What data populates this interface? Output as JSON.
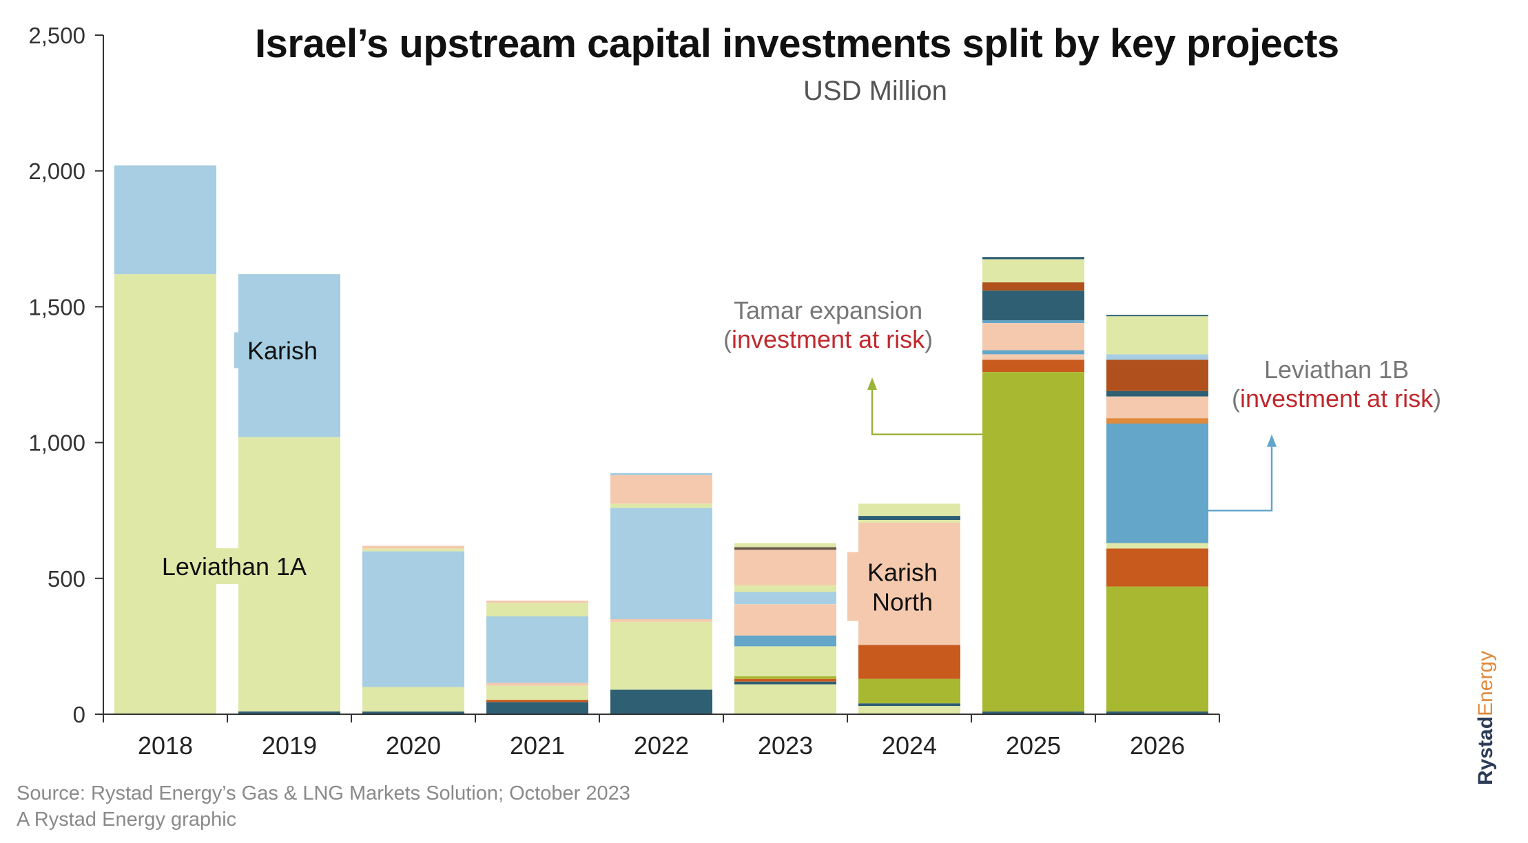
{
  "title": "Israel’s upstream capital investments split by key projects",
  "subtitle": "USD Million",
  "source_line1": "Source: Rystad Energy’s Gas & LNG Markets Solution; October 2023",
  "source_line2": "A Rystad Energy graphic",
  "brand": {
    "part1": "Rystad",
    "part2": "Energy"
  },
  "annotations": {
    "tamar_name": "Tamar expansion",
    "leviathan1b_name": "Leviathan 1B",
    "risk_open": "(",
    "risk_text": "investment at risk",
    "risk_close": ")"
  },
  "chart_data": {
    "type": "bar",
    "stacked": true,
    "title": "Israel’s upstream capital investments split by key projects",
    "subtitle": "USD Million",
    "categories": [
      "2018",
      "2019",
      "2020",
      "2021",
      "2022",
      "2023",
      "2024",
      "2025",
      "2026"
    ],
    "ylim": [
      0,
      2500
    ],
    "yticks": [
      0,
      500,
      1000,
      1500,
      2000,
      2500
    ],
    "ytick_labels": [
      "0",
      "500",
      "1,000",
      "1,500",
      "2,000",
      "2,500"
    ],
    "grid": false,
    "legend": "none",
    "bar_labels": [
      {
        "category": "2019",
        "text": "Karish"
      },
      {
        "category": "2018",
        "text": "Leviathan 1A"
      },
      {
        "category": "2024",
        "text": "Karish North"
      }
    ],
    "stacks": [
      {
        "category": "2018",
        "segments": [
          {
            "value": 1620,
            "color": "#e0e8a8"
          },
          {
            "value": 400,
            "color": "#a7cee2"
          }
        ]
      },
      {
        "category": "2019",
        "segments": [
          {
            "value": 10,
            "color": "#2e5f73"
          },
          {
            "value": 1010,
            "color": "#e0e8a8"
          },
          {
            "value": 600,
            "color": "#a7cee2"
          }
        ]
      },
      {
        "category": "2020",
        "segments": [
          {
            "value": 10,
            "color": "#2e5f73"
          },
          {
            "value": 90,
            "color": "#e0e8a8"
          },
          {
            "value": 500,
            "color": "#a7cee2"
          },
          {
            "value": 10,
            "color": "#e0e8a8"
          },
          {
            "value": 10,
            "color": "#f5c9ae"
          }
        ]
      },
      {
        "category": "2021",
        "segments": [
          {
            "value": 45,
            "color": "#2e5f73"
          },
          {
            "value": 8,
            "color": "#c85a1e"
          },
          {
            "value": 52,
            "color": "#e0e8a8"
          },
          {
            "value": 10,
            "color": "#f5c9ae"
          },
          {
            "value": 245,
            "color": "#a7cee2"
          },
          {
            "value": 50,
            "color": "#e0e8a8"
          },
          {
            "value": 8,
            "color": "#f5c9ae"
          }
        ]
      },
      {
        "category": "2022",
        "segments": [
          {
            "value": 90,
            "color": "#2e5f73"
          },
          {
            "value": 250,
            "color": "#e0e8a8"
          },
          {
            "value": 10,
            "color": "#f5c9ae"
          },
          {
            "value": 410,
            "color": "#a7cee2"
          },
          {
            "value": 15,
            "color": "#e0e8a8"
          },
          {
            "value": 105,
            "color": "#f5c9ae"
          },
          {
            "value": 8,
            "color": "#a7cee2"
          }
        ]
      },
      {
        "category": "2023",
        "segments": [
          {
            "value": 110,
            "color": "#e0e8a8"
          },
          {
            "value": 10,
            "color": "#2e5f73"
          },
          {
            "value": 10,
            "color": "#c85a1e"
          },
          {
            "value": 10,
            "color": "#a8b830"
          },
          {
            "value": 110,
            "color": "#e0e8a8"
          },
          {
            "value": 40,
            "color": "#63a6c9"
          },
          {
            "value": 115,
            "color": "#f5c9ae"
          },
          {
            "value": 45,
            "color": "#a7cee2"
          },
          {
            "value": 25,
            "color": "#e0e8a8"
          },
          {
            "value": 130,
            "color": "#f5c9ae"
          },
          {
            "value": 10,
            "color": "#6b5a4a"
          },
          {
            "value": 15,
            "color": "#e0e8a8"
          }
        ]
      },
      {
        "category": "2024",
        "segments": [
          {
            "value": 30,
            "color": "#e0e8a8"
          },
          {
            "value": 10,
            "color": "#2e5f73"
          },
          {
            "value": 90,
            "color": "#a8b830"
          },
          {
            "value": 125,
            "color": "#c85a1e"
          },
          {
            "value": 450,
            "color": "#f5c9ae"
          },
          {
            "value": 10,
            "color": "#e0e8a8"
          },
          {
            "value": 15,
            "color": "#2e5f73"
          },
          {
            "value": 45,
            "color": "#e0e8a8"
          }
        ]
      },
      {
        "category": "2025",
        "segments": [
          {
            "value": 10,
            "color": "#2e5f73"
          },
          {
            "value": 1250,
            "color": "#a8b830"
          },
          {
            "value": 45,
            "color": "#c85a1e"
          },
          {
            "value": 20,
            "color": "#f5c9ae"
          },
          {
            "value": 15,
            "color": "#63a6c9"
          },
          {
            "value": 100,
            "color": "#f5c9ae"
          },
          {
            "value": 10,
            "color": "#63a6c9"
          },
          {
            "value": 110,
            "color": "#2e5f73"
          },
          {
            "value": 30,
            "color": "#b0501c"
          },
          {
            "value": 85,
            "color": "#e0e8a8"
          },
          {
            "value": 8,
            "color": "#2e5f73"
          }
        ]
      },
      {
        "category": "2026",
        "segments": [
          {
            "value": 10,
            "color": "#2e5f73"
          },
          {
            "value": 460,
            "color": "#a8b830"
          },
          {
            "value": 140,
            "color": "#c85a1e"
          },
          {
            "value": 20,
            "color": "#e0e8a8"
          },
          {
            "value": 440,
            "color": "#63a6c9"
          },
          {
            "value": 20,
            "color": "#e08a3c"
          },
          {
            "value": 80,
            "color": "#f5c9ae"
          },
          {
            "value": 20,
            "color": "#2e5f73"
          },
          {
            "value": 115,
            "color": "#b0501c"
          },
          {
            "value": 20,
            "color": "#a7cee2"
          },
          {
            "value": 140,
            "color": "#e0e8a8"
          },
          {
            "value": 5,
            "color": "#2e5f73"
          }
        ]
      }
    ]
  }
}
